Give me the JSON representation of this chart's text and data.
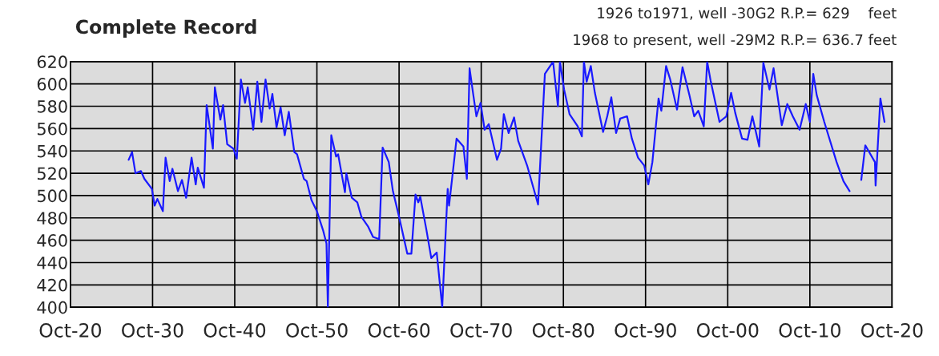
{
  "chart_data": {
    "type": "line",
    "title": "Complete Record",
    "annotations": [
      "1926 to1971, well -30G2 R.P.= 629    feet",
      "1968 to present, well -29M2 R.P.= 636.7 feet"
    ],
    "xlim": [
      "1920-10",
      "2020-10"
    ],
    "xticks": [
      {
        "value": "1920-10",
        "label": "Oct-20"
      },
      {
        "value": "1930-10",
        "label": "Oct-30"
      },
      {
        "value": "1940-10",
        "label": "Oct-40"
      },
      {
        "value": "1950-10",
        "label": "Oct-50"
      },
      {
        "value": "1960-10",
        "label": "Oct-60"
      },
      {
        "value": "1970-10",
        "label": "Oct-70"
      },
      {
        "value": "1980-10",
        "label": "Oct-80"
      },
      {
        "value": "1990-10",
        "label": "Oct-90"
      },
      {
        "value": "2000-10",
        "label": "Oct-00"
      },
      {
        "value": "2010-10",
        "label": "Oct-10"
      },
      {
        "value": "2020-10",
        "label": "Oct-20"
      }
    ],
    "ylim": [
      400,
      620
    ],
    "yticks": [
      400,
      420,
      440,
      460,
      480,
      500,
      520,
      540,
      560,
      580,
      600,
      620
    ],
    "grid": true,
    "legend": false,
    "marker": "none",
    "line_style": "solid",
    "series": [
      {
        "color": "#1a1aff",
        "x": [
          "1927-11",
          "1928-04",
          "1928-09",
          "1929-05",
          "1929-10",
          "1930-09",
          "1931-01",
          "1931-05",
          "1932-01",
          "1932-05",
          "1932-11",
          "1933-03",
          "1933-11",
          "1934-05",
          "1934-11",
          "1935-07",
          "1936-01",
          "1936-04",
          "1937-01",
          "1937-05",
          "1938-02",
          "1938-05",
          "1939-01",
          "1939-05",
          "1939-11",
          "1940-08",
          "1941-01",
          "1941-07",
          "1942-01",
          "1942-05",
          "1943-01",
          "1943-07",
          "1944-01",
          "1944-07",
          "1945-01",
          "1945-05",
          "1945-11",
          "1946-05",
          "1946-11",
          "1947-05",
          "1948-01",
          "1948-05",
          "1949-03",
          "1949-07",
          "1950-02",
          "1950-10",
          "1951-07",
          "1951-12",
          "1952-02",
          "1952-07",
          "1953-02",
          "1953-05",
          "1954-03",
          "1954-05",
          "1955-01",
          "1955-09",
          "1956-03",
          "1957-01",
          "1957-08",
          "1958-05",
          "1958-10",
          "1959-07",
          "1960-01",
          "1960-10",
          "1961-10",
          "1962-04",
          "1962-10",
          "1963-02",
          "1963-05",
          "1964-02",
          "1964-09",
          "1965-05",
          "1966-01",
          "1966-09",
          "1966-11",
          "1967-04",
          "1967-10",
          "1968-08",
          "1969-01",
          "1969-05",
          "1969-10",
          "1970-03",
          "1970-09",
          "1971-03",
          "1971-09",
          "1972-09",
          "1973-03",
          "1973-07",
          "1974-02",
          "1974-10",
          "1975-04",
          "1976-05",
          "1977-09",
          "1978-07",
          "1979-07",
          "1980-02",
          "1980-05",
          "1980-11",
          "1981-07",
          "1982-07",
          "1983-01",
          "1983-04",
          "1983-08",
          "1984-02",
          "1984-08",
          "1985-08",
          "1986-02",
          "1986-08",
          "1987-03",
          "1987-09",
          "1988-07",
          "1989-02",
          "1989-11",
          "1990-08",
          "1991-02",
          "1991-08",
          "1992-05",
          "1992-09",
          "1993-04",
          "1993-10",
          "1994-08",
          "1995-04",
          "1996-02",
          "1996-09",
          "1997-03",
          "1997-11",
          "1998-04",
          "1998-09",
          "1999-10",
          "2000-08",
          "2001-03",
          "2001-09",
          "2002-07",
          "2003-03",
          "2003-10",
          "2004-08",
          "2005-02",
          "2005-11",
          "2006-05",
          "2007-05",
          "2008-01",
          "2008-09",
          "2009-07",
          "2010-04",
          "2010-10",
          "2011-03",
          "2011-08",
          "2012-07",
          "2014-01",
          "2014-11",
          "2015-08",
          "2016-04",
          "2017-01",
          "2017-07",
          "2018-09",
          "2018-10",
          "2019-05",
          "2019-11"
        ],
        "values": [
          532,
          539,
          520,
          522,
          515,
          506,
          491,
          497,
          486,
          534,
          513,
          524,
          504,
          514,
          498,
          534,
          510,
          525,
          507,
          581,
          542,
          597,
          568,
          581,
          546,
          542,
          533,
          604,
          583,
          597,
          559,
          602,
          566,
          604,
          578,
          591,
          561,
          579,
          554,
          575,
          539,
          537,
          515,
          513,
          496,
          486,
          469,
          457,
          400,
          554,
          535,
          537,
          503,
          520,
          498,
          494,
          481,
          472,
          463,
          461,
          543,
          530,
          504,
          481,
          448,
          448,
          501,
          494,
          499,
          469,
          444,
          449,
          400,
          506,
          491,
          518,
          551,
          544,
          515,
          614,
          592,
          571,
          583,
          559,
          564,
          532,
          542,
          573,
          556,
          570,
          549,
          527,
          492,
          609,
          620,
          580,
          620,
          595,
          573,
          562,
          553,
          620,
          602,
          616,
          592,
          557,
          571,
          588,
          556,
          569,
          571,
          551,
          534,
          527,
          510,
          530,
          587,
          576,
          616,
          604,
          577,
          615,
          590,
          571,
          576,
          562,
          620,
          603,
          566,
          571,
          592,
          574,
          551,
          550,
          571,
          544,
          619,
          595,
          614,
          563,
          582,
          571,
          559,
          582,
          566,
          609,
          590,
          566,
          530,
          513,
          504,
          null,
          514,
          545,
          530,
          509,
          587,
          566
        ]
      }
    ]
  }
}
